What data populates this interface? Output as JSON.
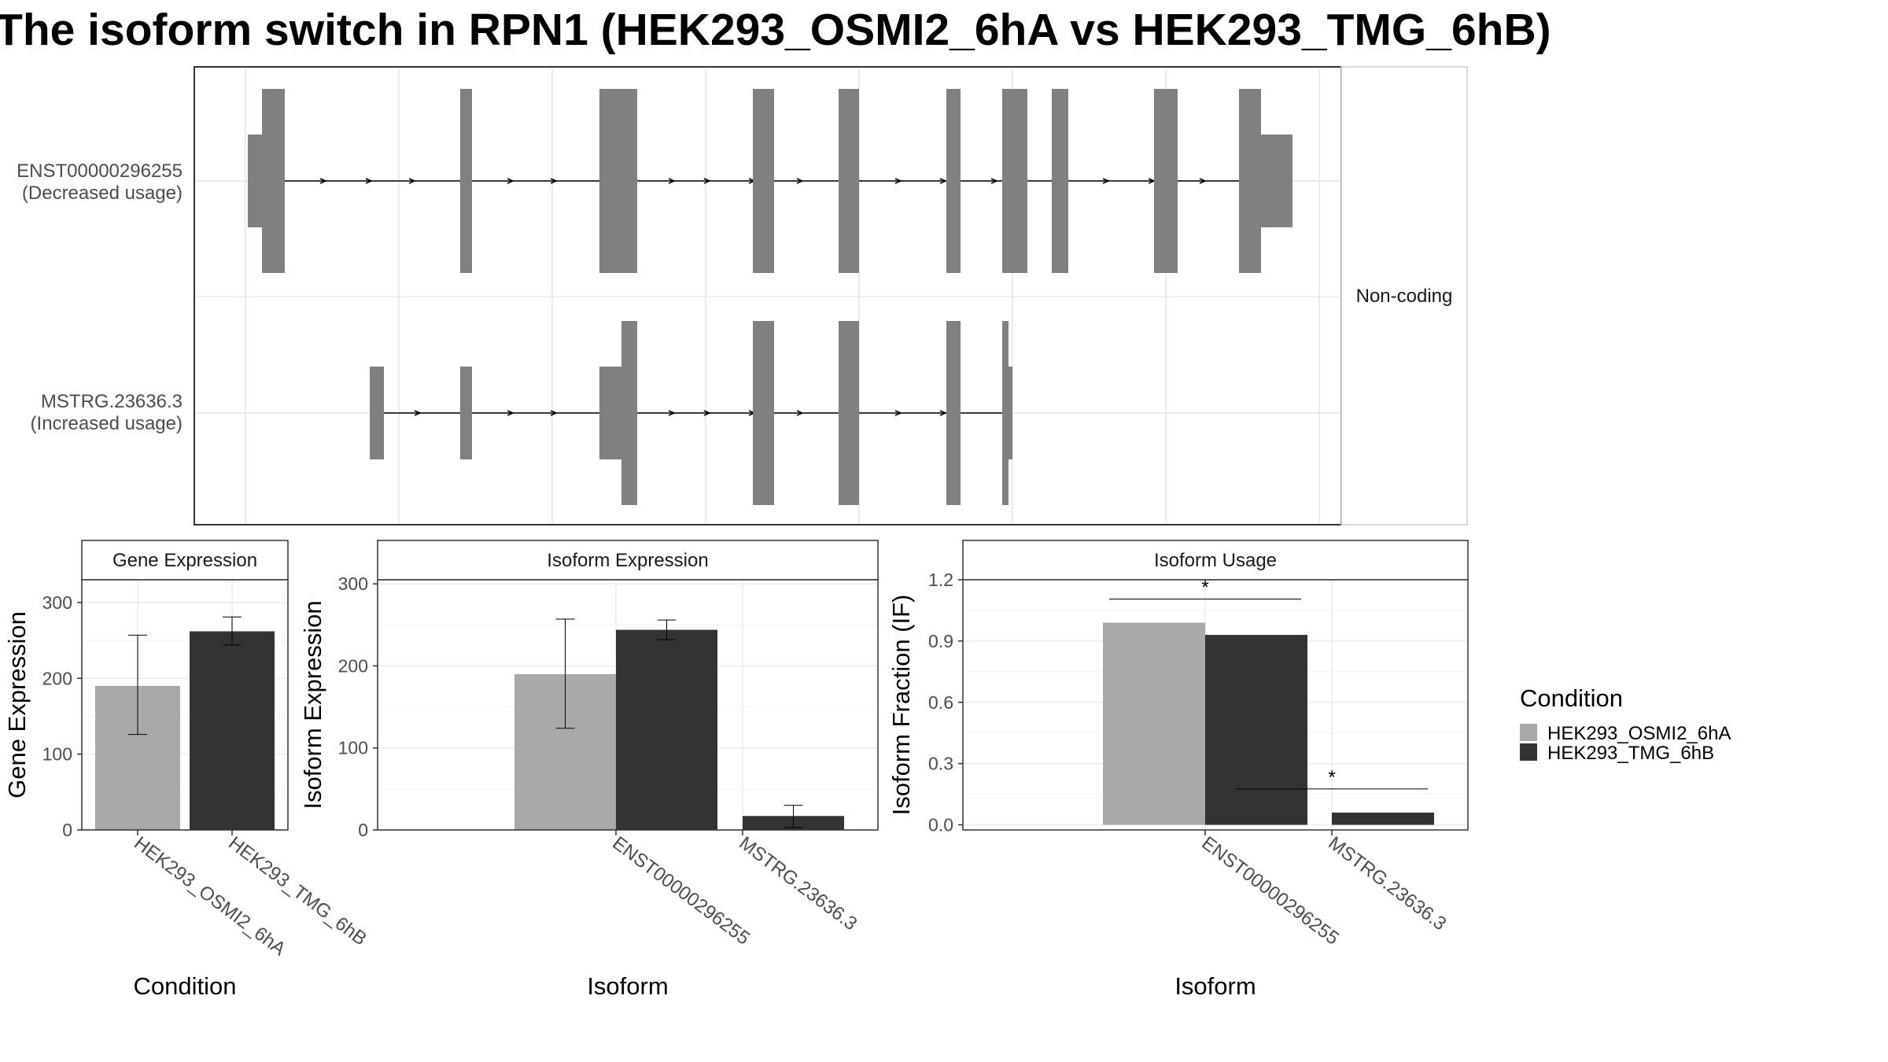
{
  "title": "The isoform switch in RPN1 (HEK293_OSMI2_6hA vs HEK293_TMG_6hB)",
  "colors": {
    "condA": "#a9a9a9",
    "condB": "#333333",
    "exon": "#808080"
  },
  "transcript_panel": {
    "facet_label": "Non-coding",
    "rows": [
      {
        "id": "ENST00000296255",
        "usage": "(Decreased usage)"
      },
      {
        "id": "MSTRG.23636.3",
        "usage": "(Increased usage)"
      }
    ]
  },
  "legend": {
    "title": "Condition",
    "items": [
      {
        "label": "HEK293_OSMI2_6hA",
        "color": "#a9a9a9"
      },
      {
        "label": "HEK293_TMG_6hB",
        "color": "#333333"
      }
    ]
  },
  "chart_data": [
    {
      "type": "bar",
      "strip": "Gene Expression",
      "xlabel": "Condition",
      "ylabel": "Gene Expression",
      "ylim": [
        0,
        330
      ],
      "yticks": [
        0,
        100,
        200,
        300
      ],
      "categories": [
        "HEK293_OSMI2_6hA",
        "HEK293_TMG_6hB"
      ],
      "values": [
        190,
        262
      ],
      "error": [
        [
          126,
          257
        ],
        [
          244,
          281
        ]
      ]
    },
    {
      "type": "bar",
      "strip": "Isoform Expression",
      "xlabel": "Isoform",
      "ylabel": "Isoform Expression",
      "ylim": [
        0,
        305
      ],
      "yticks": [
        0,
        100,
        200,
        300
      ],
      "categories": [
        "ENST00000296255",
        "MSTRG.23636.3"
      ],
      "series": [
        {
          "name": "HEK293_OSMI2_6hA",
          "values": [
            190,
            0
          ],
          "error": [
            [
              124,
              257
            ],
            [
              0,
              0
            ]
          ]
        },
        {
          "name": "HEK293_TMG_6hB",
          "values": [
            244,
            17
          ],
          "error": [
            [
              232,
              256
            ],
            [
              3,
              30
            ]
          ]
        }
      ]
    },
    {
      "type": "bar",
      "strip": "Isoform Usage",
      "xlabel": "Isoform",
      "ylabel": "Isoform Fraction (IF)",
      "ylim": [
        -0.025,
        1.2
      ],
      "yticks": [
        0.0,
        0.3,
        0.6,
        0.9,
        1.2
      ],
      "categories": [
        "ENST00000296255",
        "MSTRG.23636.3"
      ],
      "series": [
        {
          "name": "HEK293_OSMI2_6hA",
          "values": [
            0.99,
            0.0
          ]
        },
        {
          "name": "HEK293_TMG_6hB",
          "values": [
            0.93,
            0.06
          ]
        }
      ],
      "significance": [
        "*",
        "*"
      ]
    }
  ]
}
